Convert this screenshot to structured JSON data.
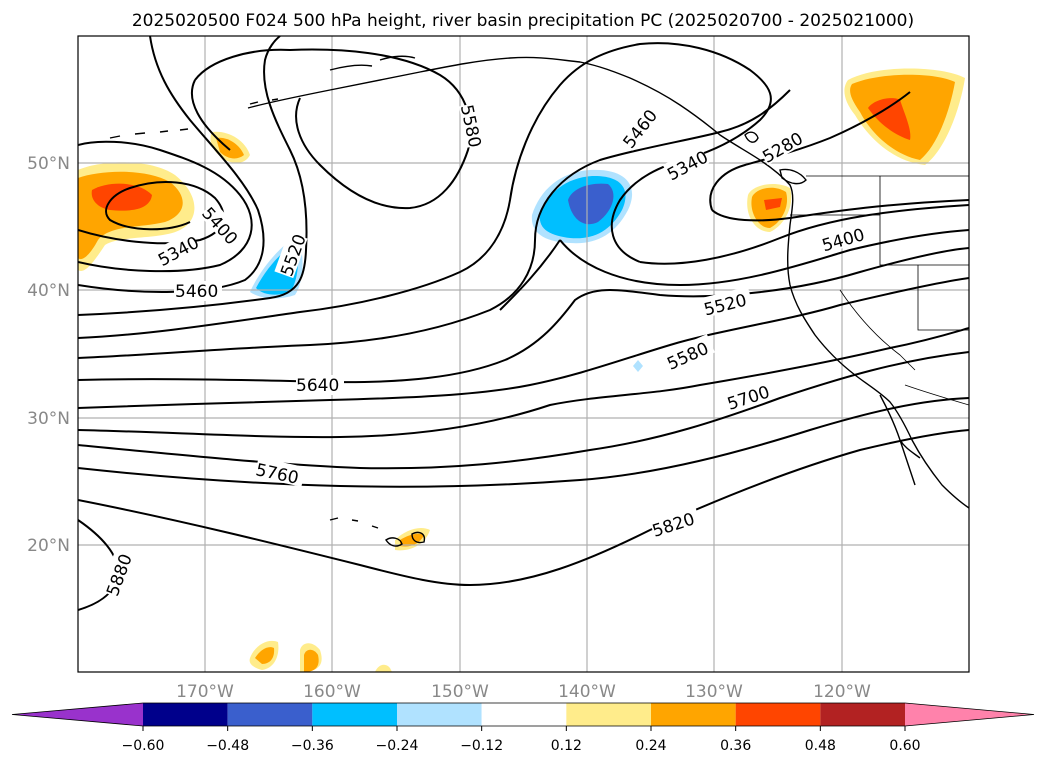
{
  "title": "2025020500 F024 500 hPa height, river basin precipitation PC (2025020700 - 2025021000)",
  "lat_labels": [
    "50°N",
    "40°N",
    "30°N",
    "20°N"
  ],
  "lon_labels": [
    "170°W",
    "160°W",
    "150°W",
    "140°W",
    "130°W",
    "120°W"
  ],
  "contour_labels": [
    "5340",
    "5400",
    "5460",
    "5520",
    "5580",
    "5460",
    "5340",
    "5280",
    "5400",
    "5520",
    "5580",
    "5640",
    "5700",
    "5760",
    "5820",
    "5880"
  ],
  "colorbar": {
    "ticks": [
      "−0.60",
      "−0.48",
      "−0.36",
      "−0.24",
      "−0.12",
      "0.12",
      "0.24",
      "0.36",
      "0.48",
      "0.60"
    ],
    "colors": [
      "#9932cc",
      "#00008b",
      "#3a5fcd",
      "#00bfff",
      "#b0e2ff",
      "#ffffff",
      "#ffec8b",
      "#ffa500",
      "#ff4500",
      "#b22222",
      "#ff82ab"
    ]
  },
  "map": {
    "region": "North Pacific / Western North America",
    "lon_range": [
      -180,
      -110
    ],
    "lat_range": [
      10,
      60
    ],
    "gridlines": true,
    "field": "500 hPa height (dam contours) with precipitation PC shading"
  }
}
